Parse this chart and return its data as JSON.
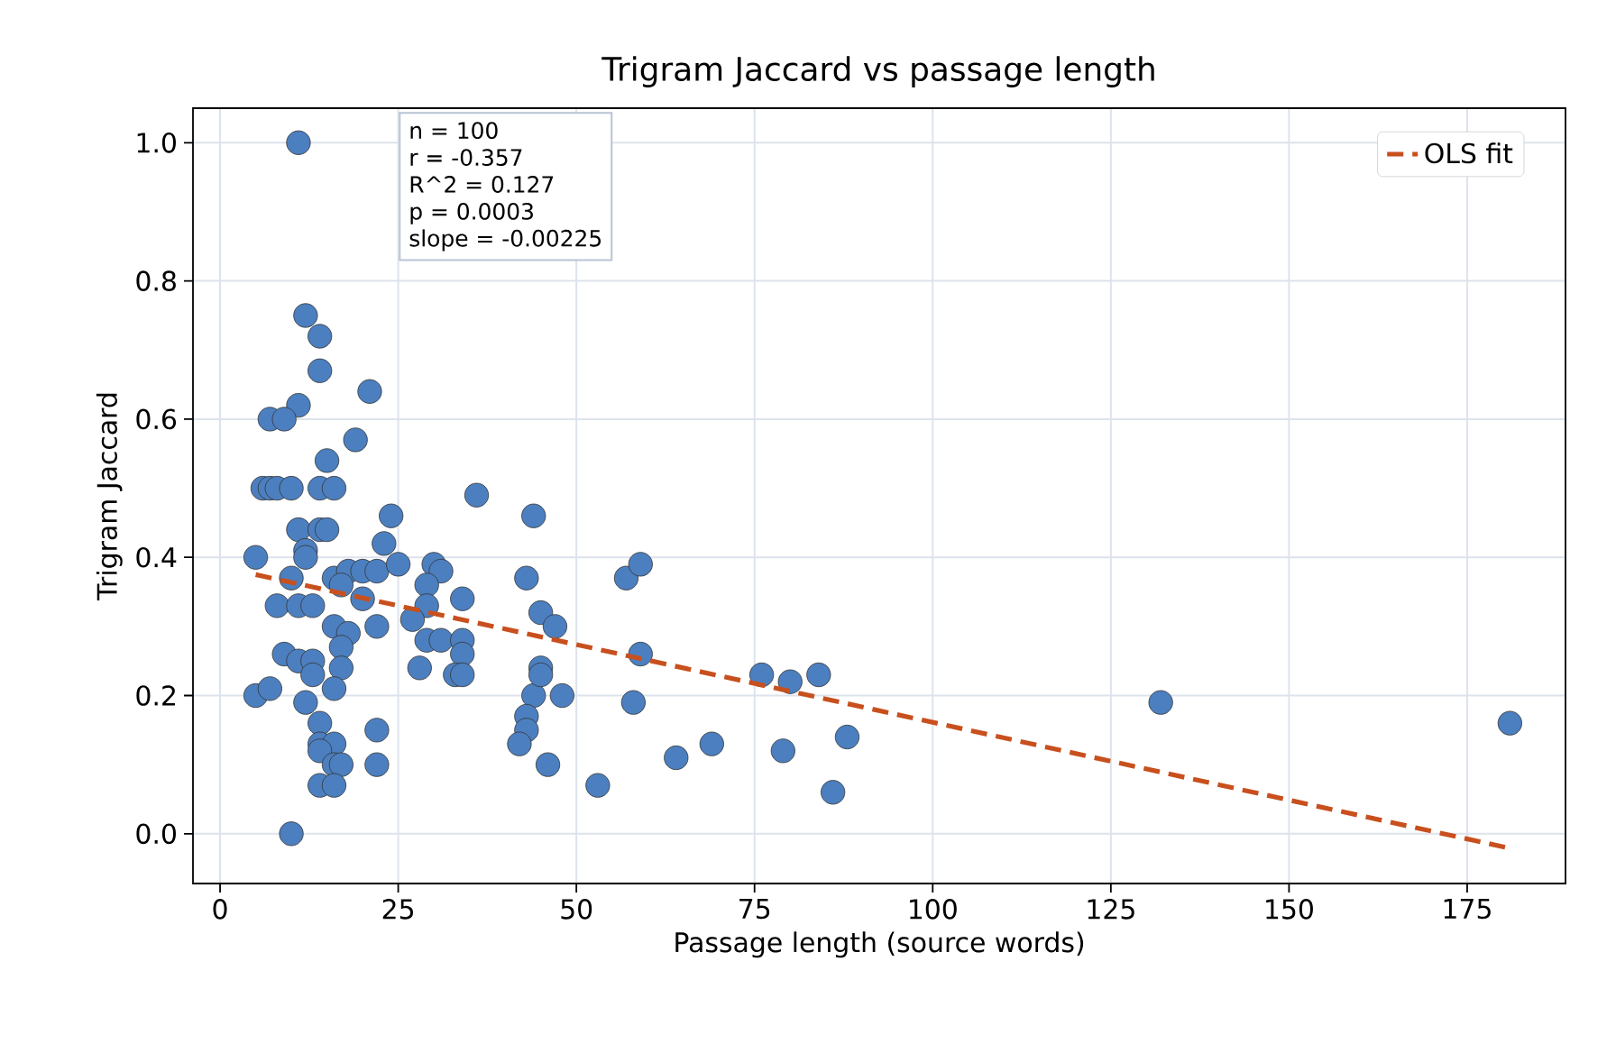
{
  "chart_data": {
    "type": "scatter",
    "title": "Trigram Jaccard vs passage length",
    "xlabel": "Passage length (source words)",
    "ylabel": "Trigram Jaccard",
    "xlim": [
      -3.8,
      188.8
    ],
    "ylim": [
      -0.072,
      1.05
    ],
    "xticks": [
      0,
      25,
      50,
      75,
      100,
      125,
      150,
      175
    ],
    "yticks": [
      {
        "value": 0,
        "label": "0.0"
      },
      0.2,
      0.4,
      0.6,
      0.8,
      {
        "value": 1,
        "label": "1.0"
      }
    ],
    "grid": true,
    "legend": "top right",
    "marker": "circle",
    "annotations": [
      "n = 100",
      "r = -0.357",
      "R^2 = 0.127",
      "p = 0.0003",
      "slope = -0.00225"
    ],
    "series": [
      {
        "type": "scatter",
        "color": "#4c7fbf",
        "x": [
          11,
          12,
          14,
          14,
          21,
          11,
          7,
          9,
          19,
          15,
          6,
          7,
          8,
          10,
          14,
          16,
          36,
          44,
          24,
          11,
          14,
          15,
          23,
          12,
          12,
          5,
          43,
          10,
          16,
          18,
          17,
          20,
          22,
          25,
          30,
          31,
          29,
          20,
          34,
          29,
          8,
          11,
          13,
          45,
          27,
          22,
          16,
          18,
          17,
          9,
          11,
          13,
          13,
          17,
          29,
          31,
          34,
          34,
          28,
          33,
          34,
          5,
          7,
          16,
          12,
          44,
          43,
          43,
          42,
          46,
          14,
          22,
          14,
          16,
          14,
          16,
          17,
          22,
          14,
          16,
          10,
          47,
          45,
          45,
          48,
          53,
          57,
          59,
          59,
          58,
          64,
          69,
          76,
          80,
          84,
          79,
          88,
          86,
          132,
          181
        ],
        "values": [
          1.0,
          0.75,
          0.72,
          0.67,
          0.64,
          0.62,
          0.6,
          0.6,
          0.57,
          0.54,
          0.5,
          0.5,
          0.5,
          0.5,
          0.5,
          0.5,
          0.49,
          0.46,
          0.46,
          0.44,
          0.44,
          0.44,
          0.42,
          0.41,
          0.4,
          0.4,
          0.37,
          0.37,
          0.37,
          0.38,
          0.36,
          0.38,
          0.38,
          0.39,
          0.39,
          0.38,
          0.36,
          0.34,
          0.34,
          0.33,
          0.33,
          0.33,
          0.33,
          0.32,
          0.31,
          0.3,
          0.3,
          0.29,
          0.27,
          0.26,
          0.25,
          0.25,
          0.23,
          0.24,
          0.28,
          0.28,
          0.28,
          0.26,
          0.24,
          0.23,
          0.23,
          0.2,
          0.21,
          0.21,
          0.19,
          0.2,
          0.17,
          0.15,
          0.13,
          0.1,
          0.16,
          0.15,
          0.13,
          0.13,
          0.12,
          0.1,
          0.1,
          0.1,
          0.07,
          0.07,
          0.0,
          0.3,
          0.24,
          0.23,
          0.2,
          0.07,
          0.37,
          0.39,
          0.26,
          0.19,
          0.11,
          0.13,
          0.23,
          0.22,
          0.23,
          0.12,
          0.14,
          0.06,
          0.19,
          0.16
        ]
      },
      {
        "type": "line",
        "name": "OLS fit",
        "color": "#c8501e",
        "line_style": "dashed",
        "marker": "none",
        "x": [
          5,
          181
        ],
        "values": [
          0.375,
          -0.021
        ]
      }
    ]
  }
}
